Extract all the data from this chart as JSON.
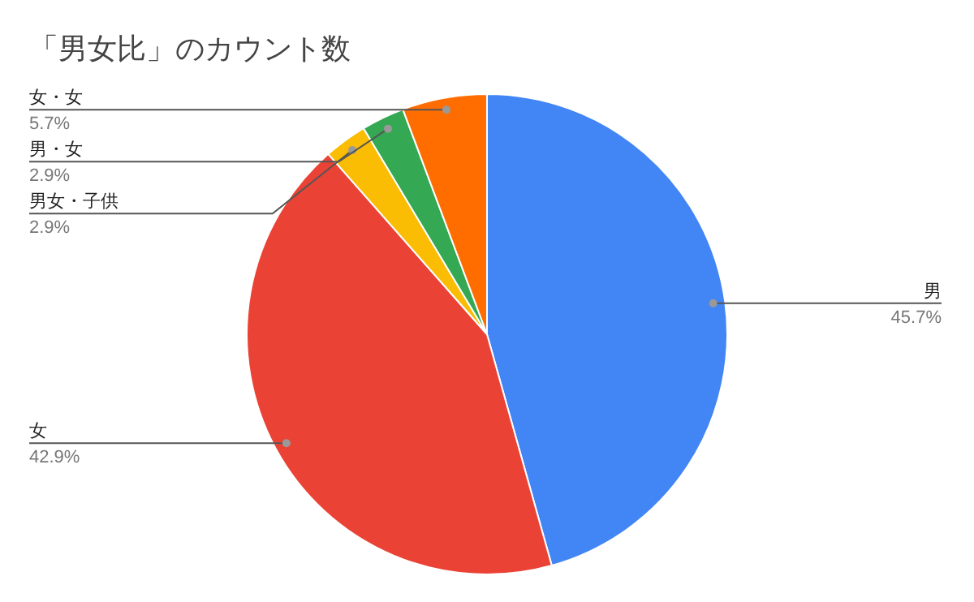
{
  "chart_data": {
    "type": "pie",
    "title": "「男女比」のカウント数",
    "categories": [
      "男",
      "女",
      "男女・子供",
      "男・女",
      "女・女"
    ],
    "values": [
      45.7,
      42.9,
      2.9,
      2.9,
      5.7
    ],
    "colors": [
      "#4285f4",
      "#ea4335",
      "#fbbc04",
      "#34a853",
      "#ff6d01"
    ],
    "value_labels": [
      "45.7%",
      "42.9%",
      "2.9%",
      "2.9%",
      "5.7%"
    ]
  }
}
